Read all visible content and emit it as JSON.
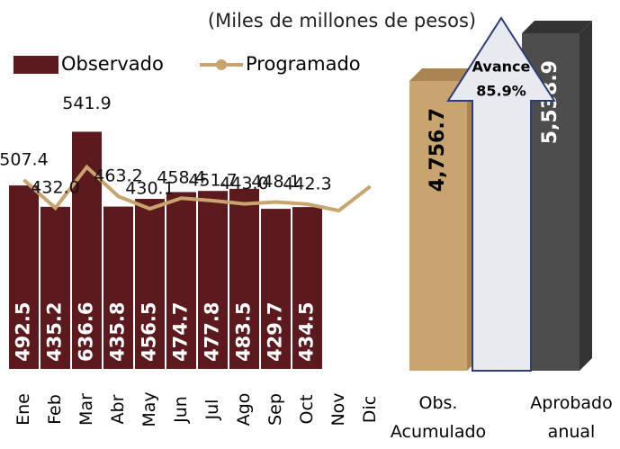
{
  "chart_data": [
    {
      "type": "bar-line",
      "subtitle": "(Miles de millones de pesos)",
      "categories": [
        "Ene",
        "Feb",
        "Mar",
        "Abr",
        "May",
        "Jun",
        "Jul",
        "Ago",
        "Sep",
        "Oct",
        "Nov",
        "Dic"
      ],
      "series": [
        {
          "name": "Observado",
          "type": "bar",
          "color": "#5c1a1e",
          "values": [
            492.5,
            435.2,
            636.6,
            435.8,
            456.5,
            474.7,
            477.8,
            483.5,
            429.7,
            434.5,
            null,
            null
          ]
        },
        {
          "name": "Programado",
          "type": "line",
          "color": "#c8a46e",
          "values": [
            507.4,
            432.0,
            541.9,
            463.2,
            430.1,
            458.4,
            451.7,
            443.0,
            448.1,
            442.3,
            425,
            490
          ],
          "value_labels": [
            "507.4",
            "432.0",
            "541.9",
            "463.2",
            "430.1",
            "458.4",
            "451.7",
            "443.0",
            "448.1",
            "442.3",
            null,
            null
          ]
        }
      ]
    },
    {
      "type": "bar3d",
      "categories": [
        "Obs. Acumulado",
        "Aprobado anual"
      ],
      "values": [
        4756.7,
        5538.9
      ],
      "value_labels": [
        "4,756.7",
        "5,538.9"
      ],
      "colors": [
        "#c8a46e",
        "#4d4d4d"
      ],
      "annotation": {
        "label": "Avance",
        "value": 85.9,
        "value_label": "85.9%"
      }
    }
  ]
}
